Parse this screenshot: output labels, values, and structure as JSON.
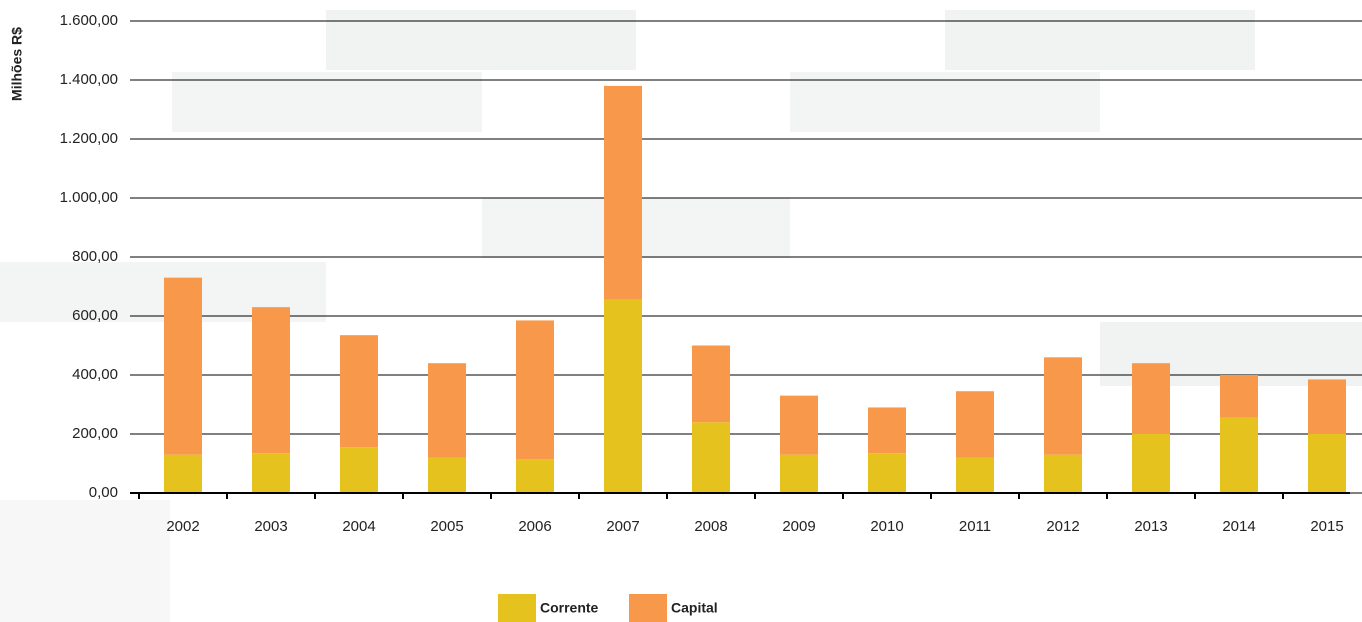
{
  "chart_data": {
    "type": "stacked_bar",
    "y_label": "Milhões R$",
    "categories": [
      "2002",
      "2003",
      "2004",
      "2005",
      "2006",
      "2007",
      "2008",
      "2009",
      "2010",
      "2011",
      "2012",
      "2013",
      "2014",
      "2015"
    ],
    "series": [
      {
        "name": "Corrente",
        "color": "#e6c21e",
        "values": [
          130,
          135,
          155,
          120,
          115,
          655,
          240,
          130,
          135,
          120,
          130,
          200,
          255,
          200
        ]
      },
      {
        "name": "Capital",
        "color": "#f7984a",
        "values": [
          600,
          495,
          380,
          320,
          470,
          725,
          260,
          200,
          155,
          225,
          330,
          240,
          145,
          185
        ]
      }
    ],
    "ylim": [
      0,
      1600
    ],
    "yticks": [
      {
        "value": 0,
        "label": "0,00"
      },
      {
        "value": 200,
        "label": "200,00"
      },
      {
        "value": 400,
        "label": "400,00"
      },
      {
        "value": 600,
        "label": "600,00"
      },
      {
        "value": 800,
        "label": "800,00"
      },
      {
        "value": 1000,
        "label": "1.000,00"
      },
      {
        "value": 1200,
        "label": "1.200,00"
      },
      {
        "value": 1400,
        "label": "1.400,00"
      },
      {
        "value": 1600,
        "label": "1.600,00"
      }
    ],
    "grid": true
  }
}
